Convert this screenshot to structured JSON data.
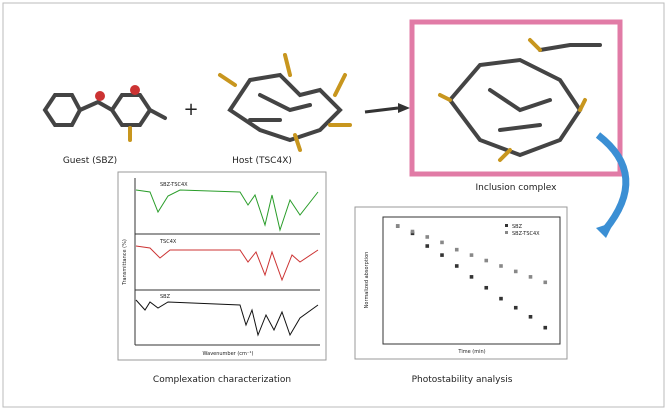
{
  "guest_label": "Guest (SBZ)",
  "host_label": "Host (TSC4X)",
  "complex_label": "Inclusion complex",
  "ir_panel": {
    "title": "Complexation characterization",
    "traces": [
      "SBZ-TSC4X",
      "TSC4X",
      "SBZ"
    ],
    "x_label": "Wavenumber (cm⁻¹)",
    "y_label": "Transmittance (%)"
  },
  "photostability": {
    "title": "Photostability analysis",
    "x_label": "Time (min)",
    "y_label": "Normalized absorption",
    "xlim": [
      -10,
      110
    ],
    "ylim": [
      0.35,
      1.05
    ],
    "x": [
      0,
      10,
      20,
      30,
      40,
      50,
      60,
      70,
      80,
      90,
      100
    ],
    "series": [
      {
        "name": "SBZ",
        "color": "#333333",
        "values": [
          1.0,
          0.96,
          0.89,
          0.84,
          0.78,
          0.72,
          0.66,
          0.6,
          0.55,
          0.5,
          0.44
        ]
      },
      {
        "name": "SBZ-TSC4X",
        "color": "#888888",
        "values": [
          1.0,
          0.97,
          0.94,
          0.91,
          0.87,
          0.84,
          0.81,
          0.78,
          0.75,
          0.72,
          0.69
        ]
      }
    ]
  }
}
